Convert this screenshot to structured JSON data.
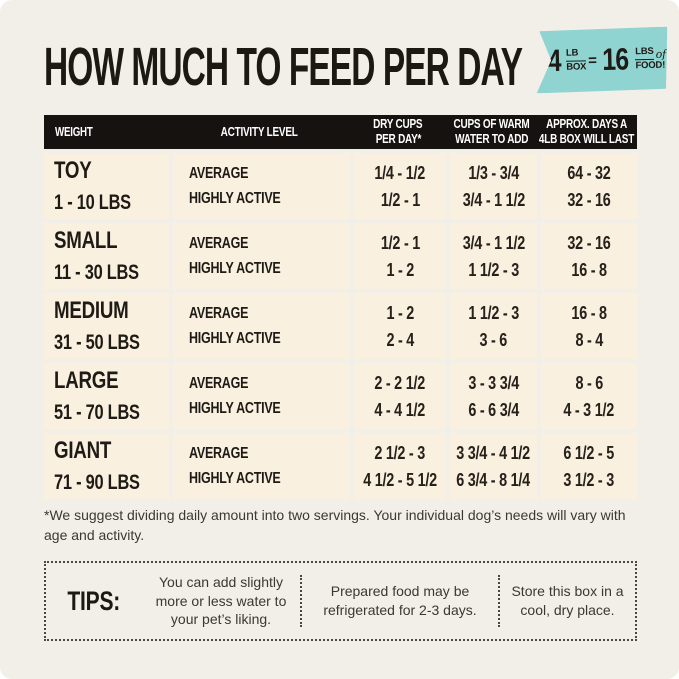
{
  "page_bg": "#f2efe8",
  "header": {
    "title": "HOW MUCH TO FEED PER DAY",
    "badge": {
      "bg_color": "#8fd4d0",
      "qty": "4",
      "qty_unit_top": "LB",
      "qty_unit_bottom": "BOX",
      "equals": "=",
      "result": "16",
      "result_unit_top": "LBS",
      "result_unit_script": "of",
      "result_unit_bottom": "FOOD!"
    }
  },
  "table": {
    "header_bg": "#161210",
    "row_bg": "#f9f0df",
    "headers": [
      {
        "line1": "WEIGHT",
        "line2": ""
      },
      {
        "line1": "ACTIVITY LEVEL",
        "line2": ""
      },
      {
        "line1": "DRY CUPS",
        "line2": "PER DAY*"
      },
      {
        "line1": "CUPS OF WARM",
        "line2": "WATER TO ADD"
      },
      {
        "line1": "APPROX. DAYS A",
        "line2": "4LB BOX WILL LAST"
      }
    ],
    "rows": [
      {
        "size": "TOY",
        "range": "1 - 10 LBS",
        "activity1": "AVERAGE",
        "activity2": "HIGHLY ACTIVE",
        "dry1": "1/4 - 1/2",
        "dry2": "1/2 - 1",
        "water1": "1/3 - 3/4",
        "water2": "3/4 - 1 1/2",
        "days1": "64 - 32",
        "days2": "32 - 16"
      },
      {
        "size": "SMALL",
        "range": "11 - 30 LBS",
        "activity1": "AVERAGE",
        "activity2": "HIGHLY ACTIVE",
        "dry1": "1/2 - 1",
        "dry2": "1 - 2",
        "water1": "3/4 - 1 1/2",
        "water2": "1 1/2 - 3",
        "days1": "32 - 16",
        "days2": "16 - 8"
      },
      {
        "size": "MEDIUM",
        "range": "31 - 50 LBS",
        "activity1": "AVERAGE",
        "activity2": "HIGHLY ACTIVE",
        "dry1": "1 - 2",
        "dry2": "2 - 4",
        "water1": "1 1/2 - 3",
        "water2": "3 - 6",
        "days1": "16 - 8",
        "days2": "8 - 4"
      },
      {
        "size": "LARGE",
        "range": "51 - 70 LBS",
        "activity1": "AVERAGE",
        "activity2": "HIGHLY ACTIVE",
        "dry1": "2 - 2 1/2",
        "dry2": "4 - 4 1/2",
        "water1": "3 - 3 3/4",
        "water2": "6 - 6 3/4",
        "days1": "8 - 6",
        "days2": "4 - 3 1/2"
      },
      {
        "size": "GIANT",
        "range": "71 - 90 LBS",
        "activity1": "AVERAGE",
        "activity2": "HIGHLY ACTIVE",
        "dry1": "2 1/2 - 3",
        "dry2": "4 1/2 - 5 1/2",
        "water1": "3 3/4 - 4 1/2",
        "water2": "6 3/4 - 8 1/4",
        "days1": "6 1/2 - 5",
        "days2": "3 1/2 - 3"
      }
    ]
  },
  "footnote": "*We suggest dividing daily amount into two servings. Your individual dog’s needs will vary with age and activity.",
  "tips": {
    "label": "TIPS:",
    "items": [
      "You can add slightly more or less water to your pet’s liking.",
      "Prepared food may be refrigerated for 2-3 days.",
      "Store this box in a cool, dry place."
    ]
  }
}
